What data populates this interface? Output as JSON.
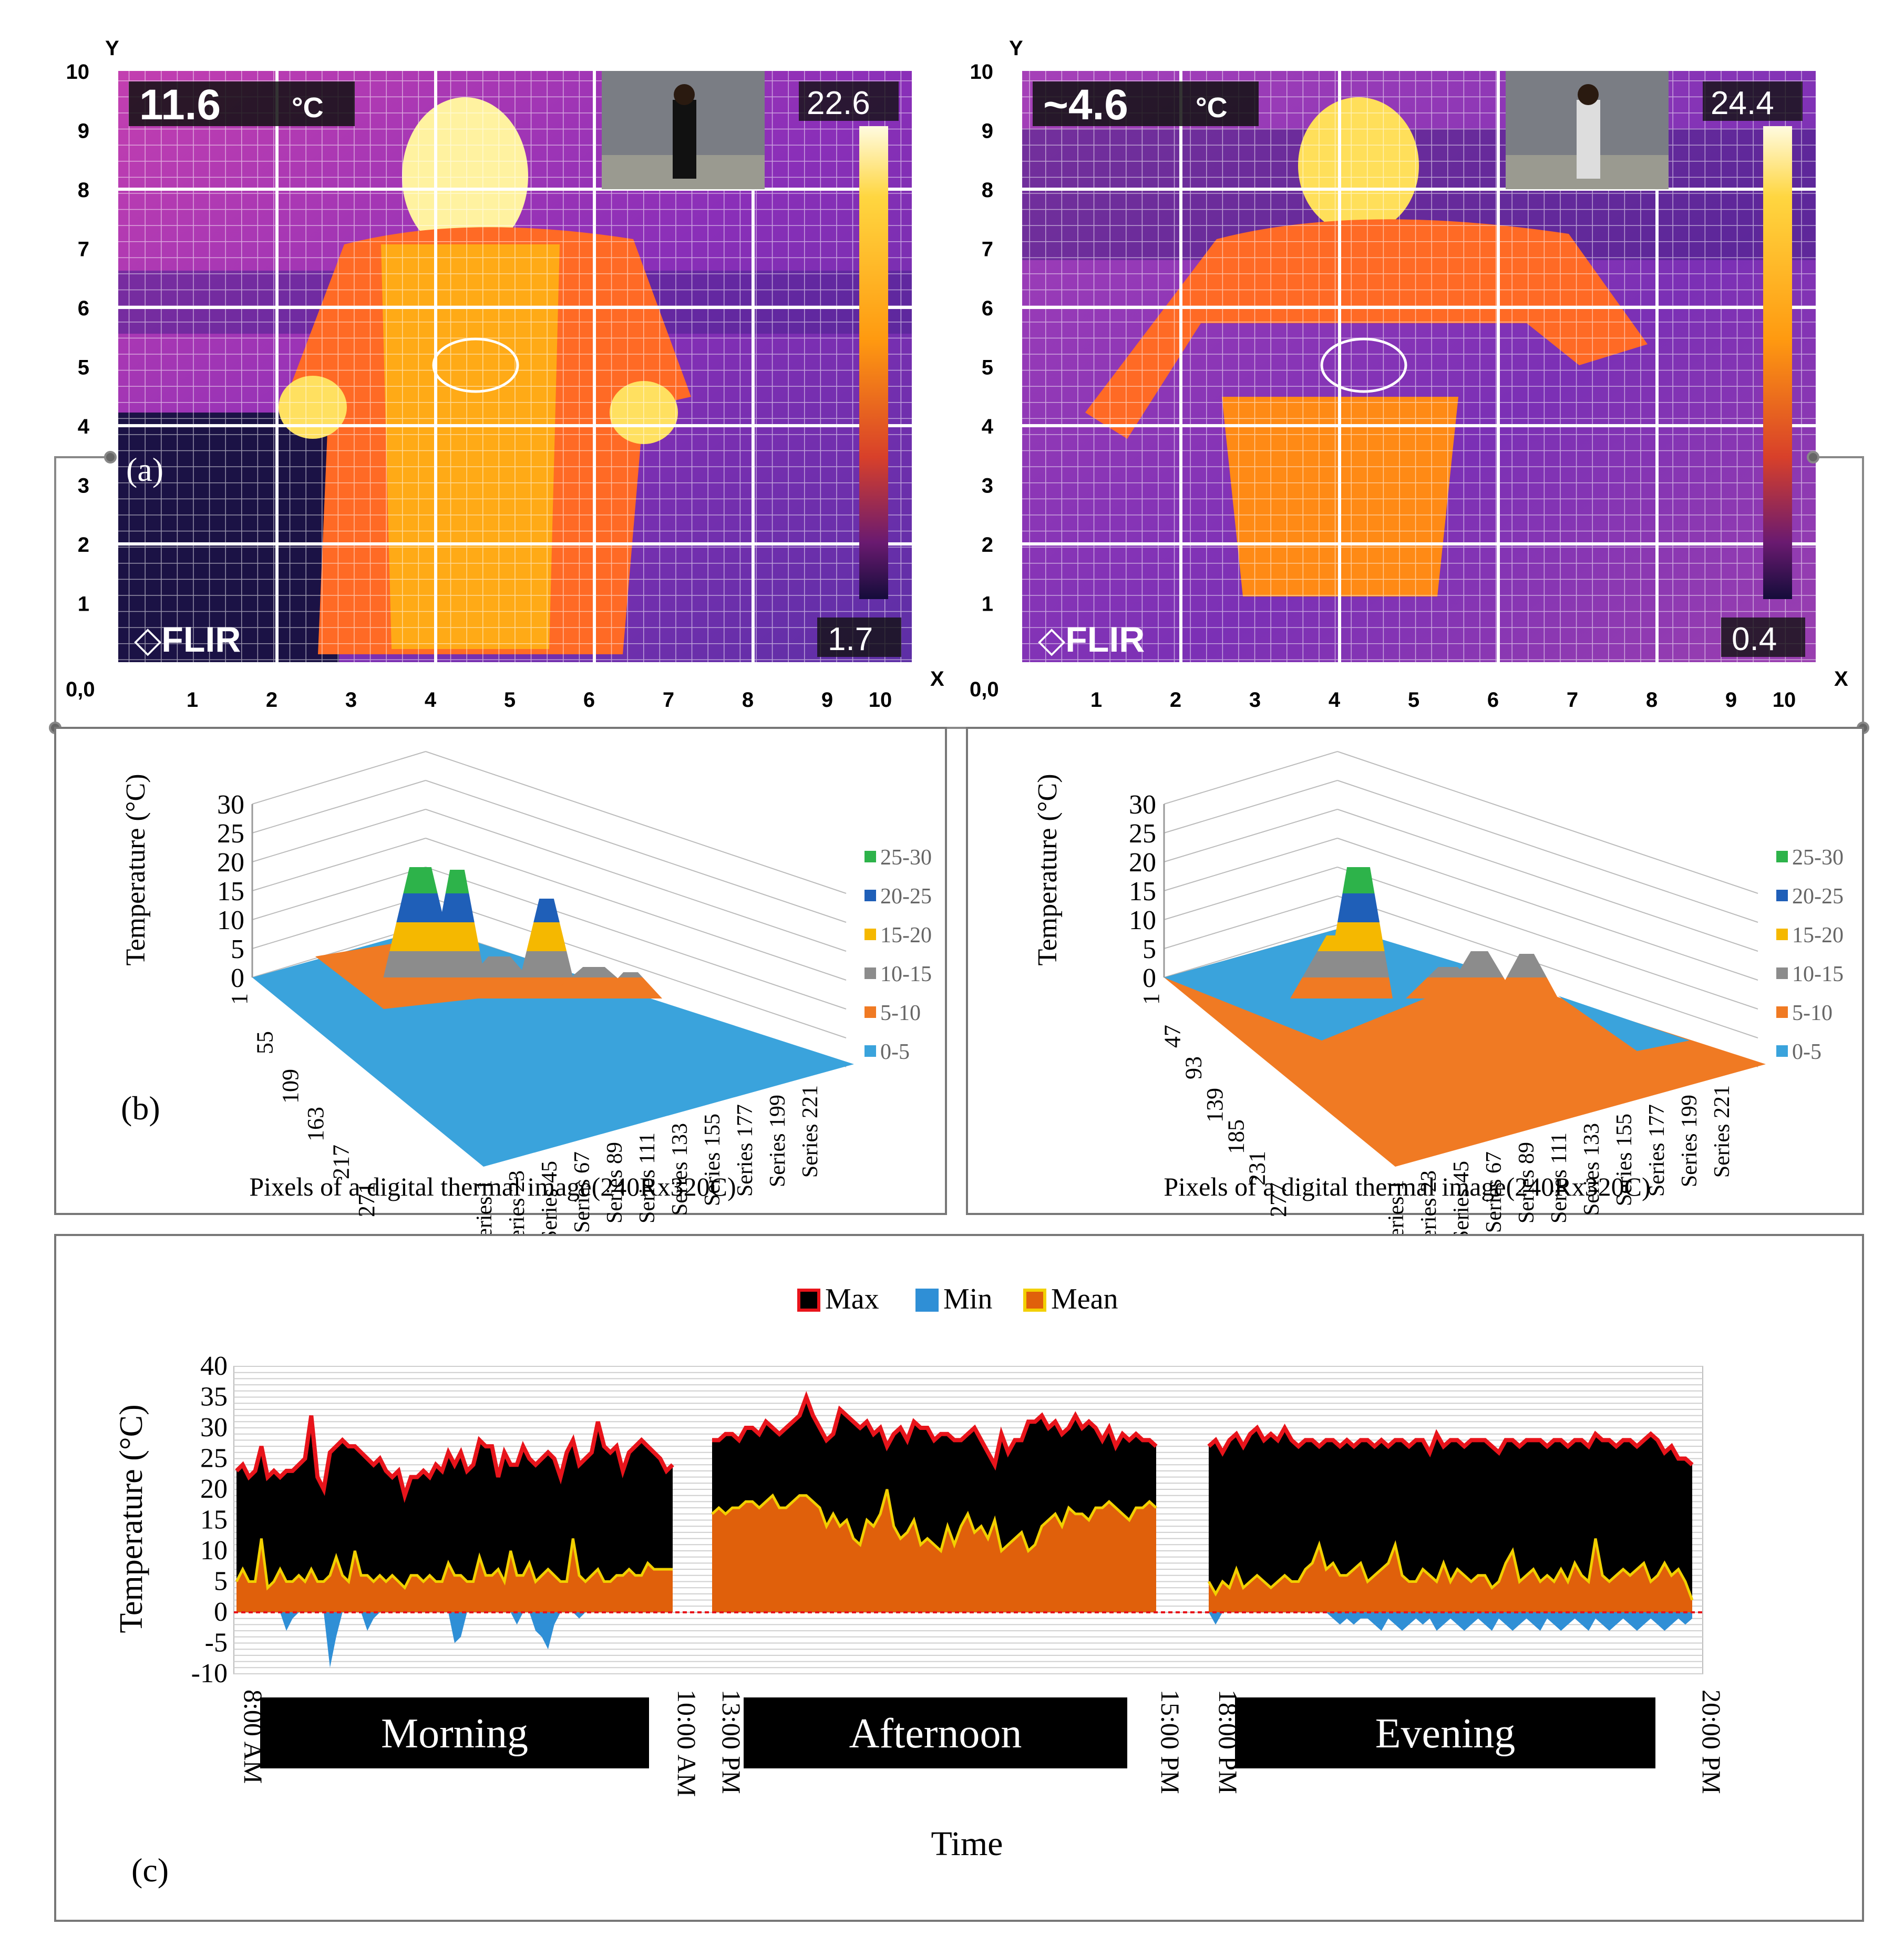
{
  "panel_a": {
    "label": "(a)",
    "axis_x_letter": "X",
    "axis_y_letter": "Y",
    "origin_label": "0,0",
    "ticks": [
      "1",
      "2",
      "3",
      "4",
      "5",
      "6",
      "7",
      "8",
      "9",
      "10"
    ],
    "left": {
      "temp_readout": "11.6",
      "unit": "°C",
      "scale_max": "22.6",
      "scale_min": "1.7",
      "brand": "FLIR"
    },
    "right": {
      "temp_readout": "~4.6",
      "unit": "°C",
      "scale_max": "24.4",
      "scale_min": "0.4",
      "brand": "FLIR"
    }
  },
  "panel_b": {
    "label": "(b)",
    "ylabel": "Temperature (°C)",
    "xlabel": "Pixels of a digital thermal image(240Rx320C)",
    "z_ticks": [
      "30",
      "25",
      "20",
      "15",
      "10",
      "5",
      "0"
    ],
    "legend": [
      {
        "label": "25-30",
        "color": "#2db34a"
      },
      {
        "label": "20-25",
        "color": "#1f5fb8"
      },
      {
        "label": "15-20",
        "color": "#f5b800"
      },
      {
        "label": "10-15",
        "color": "#8c8c8c"
      },
      {
        "label": "5-10",
        "color": "#f07a23"
      },
      {
        "label": "0-5",
        "color": "#3aa3dc"
      }
    ],
    "left_row_ticks": [
      "1",
      "55",
      "109",
      "163",
      "217",
      "271"
    ],
    "right_row_ticks": [
      "1",
      "47",
      "93",
      "139",
      "185",
      "231",
      "277"
    ],
    "series_ticks": [
      "Series 1",
      "Series 23",
      "Series 45",
      "Series 67",
      "Series 89",
      "Series 111",
      "Series 133",
      "Series 155",
      "Series 177",
      "Series 199",
      "Series 221"
    ]
  },
  "panel_c": {
    "label": "(c)",
    "ylabel": "Temperature (°C)",
    "xlabel": "Time",
    "legend": [
      {
        "label": "Max",
        "fill": "#000000",
        "stroke": "#e8141b"
      },
      {
        "label": "Min",
        "fill": "#2f8fd6",
        "stroke": "#2f8fd6"
      },
      {
        "label": "Mean",
        "fill": "#e0600b",
        "stroke": "#f2d000"
      }
    ],
    "periods": [
      {
        "name": "Morning",
        "start": "8:00 AM",
        "end": "10:00 AM"
      },
      {
        "name": "Afternoon",
        "start": "13:00 PM",
        "end": "15:00 PM"
      },
      {
        "name": "Evening",
        "start": "18:00 PM",
        "end": "20:00 PM"
      }
    ]
  },
  "chart_data": [
    {
      "type": "area",
      "title": "",
      "xlabel": "Time",
      "ylabel": "Temperature (°C)",
      "ylim": [
        -10,
        40
      ],
      "y_ticks": [
        -10,
        -5,
        0,
        5,
        10,
        15,
        20,
        25,
        30,
        35,
        40
      ],
      "grid": true,
      "legend_position": "top-center",
      "series": [
        {
          "name": "Max",
          "segments": [
            [
              23,
              24,
              22,
              23,
              27,
              22,
              23,
              22,
              23,
              23,
              24,
              25,
              32,
              22,
              20,
              26,
              27,
              28,
              27,
              27,
              26,
              25,
              24,
              25,
              23,
              22,
              23,
              19,
              22,
              22,
              23,
              22,
              24,
              23,
              26,
              24,
              26,
              23,
              24,
              28,
              27,
              27,
              22,
              26,
              24,
              24,
              27,
              25,
              24,
              25,
              26,
              25,
              22,
              26,
              28,
              24,
              25,
              26,
              31,
              27,
              26,
              27,
              23,
              26,
              27,
              28,
              27,
              26,
              25,
              23,
              24
            ],
            [
              28,
              28,
              29,
              29,
              28,
              30,
              30,
              29,
              31,
              30,
              29,
              30,
              31,
              32,
              35,
              32,
              30,
              28,
              29,
              33,
              32,
              31,
              30,
              31,
              29,
              30,
              27,
              29,
              30,
              28,
              31,
              30,
              30,
              28,
              29,
              29,
              28,
              28,
              29,
              30,
              28,
              26,
              24,
              29,
              26,
              28,
              28,
              31,
              31,
              32,
              30,
              31,
              29,
              30,
              32,
              30,
              31,
              30,
              28,
              30,
              27,
              29,
              28,
              29,
              28,
              28,
              27
            ],
            [
              27,
              28,
              26,
              28,
              29,
              27,
              29,
              30,
              28,
              29,
              28,
              30,
              28,
              27,
              28,
              28,
              27,
              28,
              28,
              27,
              28,
              27,
              28,
              28,
              27,
              28,
              27,
              28,
              28,
              27,
              28,
              28,
              26,
              29,
              27,
              28,
              28,
              27,
              28,
              28,
              28,
              27,
              26,
              28,
              28,
              27,
              28,
              28,
              28,
              27,
              28,
              28,
              27,
              28,
              28,
              27,
              29,
              28,
              28,
              27,
              28,
              28,
              27,
              28,
              29,
              28,
              26,
              27,
              25,
              25,
              24
            ]
          ]
        },
        {
          "name": "Mean",
          "segments": [
            [
              5,
              7,
              5,
              5,
              12,
              4,
              5,
              7,
              5,
              5,
              6,
              5,
              7,
              5,
              5,
              6,
              9,
              6,
              5,
              10,
              6,
              6,
              5,
              6,
              5,
              6,
              5,
              4,
              6,
              6,
              5,
              6,
              5,
              5,
              8,
              6,
              6,
              5,
              5,
              9,
              6,
              6,
              7,
              5,
              10,
              6,
              6,
              8,
              5,
              6,
              7,
              6,
              5,
              5,
              12,
              6,
              5,
              6,
              7,
              5,
              5,
              6,
              6,
              7,
              6,
              6,
              8,
              7,
              7,
              7,
              7
            ],
            [
              16,
              17,
              16,
              17,
              17,
              18,
              18,
              17,
              18,
              19,
              17,
              17,
              18,
              19,
              19,
              18,
              17,
              14,
              16,
              14,
              15,
              12,
              11,
              15,
              14,
              16,
              20,
              14,
              12,
              13,
              15,
              11,
              12,
              11,
              10,
              14,
              11,
              14,
              16,
              13,
              14,
              12,
              15,
              10,
              11,
              12,
              13,
              10,
              11,
              14,
              15,
              16,
              14,
              17,
              16,
              16,
              15,
              17,
              17,
              18,
              17,
              16,
              15,
              17,
              17,
              18,
              17
            ],
            [
              5,
              3,
              5,
              4,
              7,
              4,
              5,
              6,
              5,
              4,
              5,
              6,
              5,
              5,
              7,
              8,
              11,
              7,
              8,
              6,
              6,
              7,
              8,
              5,
              6,
              7,
              8,
              11,
              6,
              5,
              5,
              7,
              6,
              5,
              8,
              5,
              7,
              6,
              5,
              6,
              6,
              4,
              5,
              8,
              10,
              5,
              6,
              7,
              5,
              6,
              5,
              7,
              5,
              8,
              6,
              5,
              12,
              6,
              5,
              6,
              7,
              6,
              7,
              8,
              5,
              6,
              8,
              6,
              7,
              5,
              2
            ]
          ]
        },
        {
          "name": "Min",
          "segments": [
            [
              0,
              0,
              0,
              0,
              0,
              0,
              0,
              0,
              -3,
              -1,
              0,
              0,
              0,
              0,
              0,
              -9,
              -4,
              0,
              0,
              0,
              0,
              -3,
              -1,
              0,
              0,
              0,
              0,
              0,
              0,
              0,
              0,
              0,
              0,
              0,
              0,
              -5,
              -4,
              0,
              0,
              0,
              0,
              0,
              0,
              0,
              0,
              -2,
              0,
              0,
              -3,
              -4,
              -6,
              -2,
              0,
              0,
              0,
              -1,
              0,
              0,
              0,
              0,
              0,
              0,
              0,
              0,
              0,
              0,
              0,
              0,
              0,
              0,
              0
            ],
            [],
            [
              0,
              -2,
              0,
              0,
              0,
              0,
              0,
              0,
              0,
              0,
              0,
              0,
              0,
              0,
              0,
              0,
              0,
              0,
              -1,
              -2,
              -1,
              -2,
              -1,
              -1,
              -2,
              -3,
              -1,
              -2,
              -3,
              -2,
              -1,
              -2,
              -1,
              -3,
              -2,
              -1,
              -2,
              -3,
              -2,
              -1,
              -2,
              -3,
              -1,
              -2,
              -3,
              -2,
              -1,
              -2,
              -3,
              -1,
              -2,
              -3,
              -2,
              -1,
              -2,
              -3,
              -1,
              -2,
              -3,
              -2,
              -1,
              -2,
              -3,
              -2,
              -1,
              -2,
              -3,
              -2,
              -1,
              -2,
              -1
            ]
          ]
        }
      ]
    },
    {
      "type": "heatmap",
      "title": "",
      "xlabel": "Pixels of a digital thermal image(240Rx320C)",
      "ylabel": "Temperature (°C)",
      "zlim": [
        0,
        30
      ],
      "legend_position": "right",
      "bands": [
        "25-30",
        "20-25",
        "15-20",
        "10-15",
        "5-10",
        "0-5"
      ]
    },
    {
      "type": "heatmap",
      "title": "",
      "xlabel": "Pixels of a digital thermal image(240Rx320C)",
      "ylabel": "Temperature (°C)",
      "zlim": [
        0,
        30
      ],
      "legend_position": "right",
      "bands": [
        "25-30",
        "20-25",
        "15-20",
        "10-15",
        "5-10",
        "0-5"
      ]
    }
  ]
}
